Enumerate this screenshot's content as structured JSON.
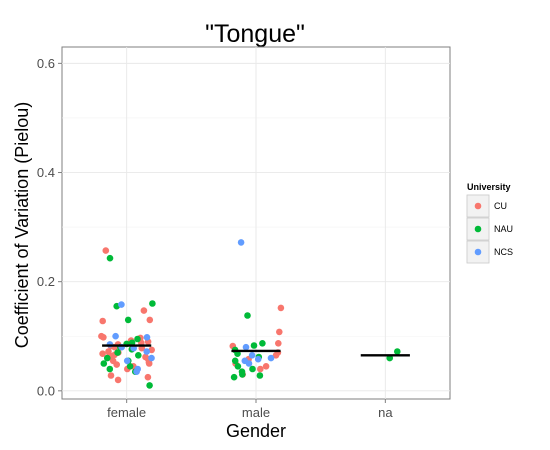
{
  "chart_data": {
    "type": "scatter",
    "title": "\"Tongue\"",
    "xlabel": "Gender",
    "ylabel": "Coefficient of Variation (Pielou)",
    "categories": [
      "female",
      "male",
      "na"
    ],
    "ylim": [
      -0.015,
      0.63
    ],
    "yticks": [
      0.0,
      0.2,
      0.4,
      0.6
    ],
    "ytick_labels": [
      "0.0",
      "0.2",
      "0.4",
      "0.6"
    ],
    "grid": true,
    "legend": {
      "title": "University",
      "position": "right",
      "entries": [
        "CU",
        "NAU",
        "NCS"
      ]
    },
    "colors": {
      "CU": "#f8766d",
      "NAU": "#00ba38",
      "NCS": "#619cff"
    },
    "medians": [
      {
        "category": "female",
        "value": 0.083
      },
      {
        "category": "male",
        "value": 0.073
      },
      {
        "category": "na",
        "value": 0.065
      }
    ],
    "series": [
      {
        "name": "CU",
        "points": [
          {
            "x": "female",
            "y": 0.257
          },
          {
            "x": "female",
            "y": 0.147
          },
          {
            "x": "female",
            "y": 0.13
          },
          {
            "x": "female",
            "y": 0.128
          },
          {
            "x": "female",
            "y": 0.1
          },
          {
            "x": "female",
            "y": 0.098
          },
          {
            "x": "female",
            "y": 0.097
          },
          {
            "x": "female",
            "y": 0.092
          },
          {
            "x": "female",
            "y": 0.09
          },
          {
            "x": "female",
            "y": 0.088
          },
          {
            "x": "female",
            "y": 0.085
          },
          {
            "x": "female",
            "y": 0.082
          },
          {
            "x": "female",
            "y": 0.08
          },
          {
            "x": "female",
            "y": 0.078
          },
          {
            "x": "female",
            "y": 0.075
          },
          {
            "x": "female",
            "y": 0.072
          },
          {
            "x": "female",
            "y": 0.07
          },
          {
            "x": "female",
            "y": 0.068
          },
          {
            "x": "female",
            "y": 0.066
          },
          {
            "x": "female",
            "y": 0.065
          },
          {
            "x": "female",
            "y": 0.062
          },
          {
            "x": "female",
            "y": 0.06
          },
          {
            "x": "female",
            "y": 0.058
          },
          {
            "x": "female",
            "y": 0.055
          },
          {
            "x": "female",
            "y": 0.052
          },
          {
            "x": "female",
            "y": 0.05
          },
          {
            "x": "female",
            "y": 0.048
          },
          {
            "x": "female",
            "y": 0.045
          },
          {
            "x": "female",
            "y": 0.04
          },
          {
            "x": "female",
            "y": 0.028
          },
          {
            "x": "female",
            "y": 0.025
          },
          {
            "x": "female",
            "y": 0.02
          },
          {
            "x": "male",
            "y": 0.152
          },
          {
            "x": "male",
            "y": 0.108
          },
          {
            "x": "male",
            "y": 0.087
          },
          {
            "x": "male",
            "y": 0.082
          },
          {
            "x": "male",
            "y": 0.07
          },
          {
            "x": "male",
            "y": 0.065
          },
          {
            "x": "male",
            "y": 0.058
          },
          {
            "x": "male",
            "y": 0.05
          },
          {
            "x": "male",
            "y": 0.045
          },
          {
            "x": "male",
            "y": 0.04
          },
          {
            "x": "male",
            "y": 0.03
          }
        ]
      },
      {
        "name": "NAU",
        "points": [
          {
            "x": "female",
            "y": 0.243
          },
          {
            "x": "female",
            "y": 0.16
          },
          {
            "x": "female",
            "y": 0.155
          },
          {
            "x": "female",
            "y": 0.13
          },
          {
            "x": "female",
            "y": 0.095
          },
          {
            "x": "female",
            "y": 0.088
          },
          {
            "x": "female",
            "y": 0.086
          },
          {
            "x": "female",
            "y": 0.08
          },
          {
            "x": "female",
            "y": 0.076
          },
          {
            "x": "female",
            "y": 0.07
          },
          {
            "x": "female",
            "y": 0.065
          },
          {
            "x": "female",
            "y": 0.06
          },
          {
            "x": "female",
            "y": 0.055
          },
          {
            "x": "female",
            "y": 0.05
          },
          {
            "x": "female",
            "y": 0.045
          },
          {
            "x": "female",
            "y": 0.04
          },
          {
            "x": "female",
            "y": 0.035
          },
          {
            "x": "female",
            "y": 0.01
          },
          {
            "x": "male",
            "y": 0.138
          },
          {
            "x": "male",
            "y": 0.087
          },
          {
            "x": "male",
            "y": 0.083
          },
          {
            "x": "male",
            "y": 0.075
          },
          {
            "x": "male",
            "y": 0.068
          },
          {
            "x": "male",
            "y": 0.062
          },
          {
            "x": "male",
            "y": 0.055
          },
          {
            "x": "male",
            "y": 0.045
          },
          {
            "x": "male",
            "y": 0.04
          },
          {
            "x": "male",
            "y": 0.035
          },
          {
            "x": "male",
            "y": 0.03
          },
          {
            "x": "male",
            "y": 0.028
          },
          {
            "x": "male",
            "y": 0.025
          },
          {
            "x": "na",
            "y": 0.072
          },
          {
            "x": "na",
            "y": 0.06
          }
        ]
      },
      {
        "name": "NCS",
        "points": [
          {
            "x": "female",
            "y": 0.158
          },
          {
            "x": "female",
            "y": 0.1
          },
          {
            "x": "female",
            "y": 0.098
          },
          {
            "x": "female",
            "y": 0.085
          },
          {
            "x": "female",
            "y": 0.08
          },
          {
            "x": "female",
            "y": 0.078
          },
          {
            "x": "female",
            "y": 0.072
          },
          {
            "x": "female",
            "y": 0.06
          },
          {
            "x": "female",
            "y": 0.055
          },
          {
            "x": "female",
            "y": 0.04
          },
          {
            "x": "female",
            "y": 0.035
          },
          {
            "x": "male",
            "y": 0.272
          },
          {
            "x": "male",
            "y": 0.08
          },
          {
            "x": "male",
            "y": 0.065
          },
          {
            "x": "male",
            "y": 0.06
          },
          {
            "x": "male",
            "y": 0.058
          },
          {
            "x": "male",
            "y": 0.055
          },
          {
            "x": "male",
            "y": 0.05
          }
        ]
      }
    ]
  }
}
